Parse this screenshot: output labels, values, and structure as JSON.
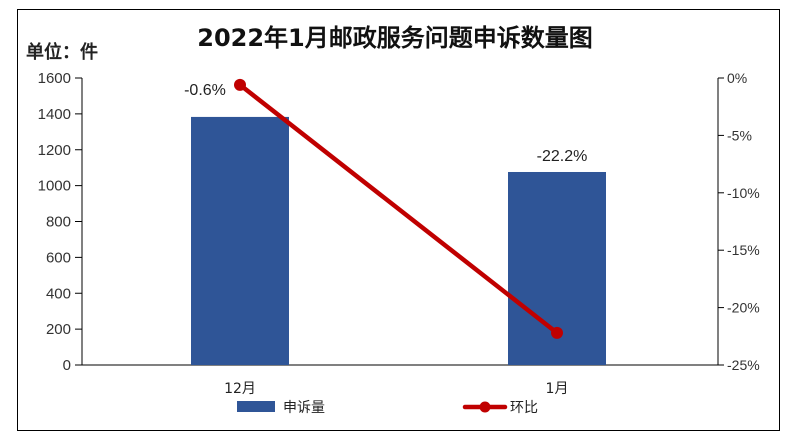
{
  "chart_data": {
    "type": "bar+line",
    "title": "2022年1月邮政服务问题申诉数量图",
    "unit_label": "单位：件",
    "categories": [
      "12月",
      "1月"
    ],
    "series": [
      {
        "name": "申诉量",
        "type": "bar",
        "axis": "left",
        "color": "#2F5597",
        "values": [
          1383,
          1076
        ]
      },
      {
        "name": "环比",
        "type": "line",
        "axis": "right",
        "color": "#C00000",
        "values": [
          -0.6,
          -22.2
        ],
        "labels": [
          "-0.6%",
          "-22.2%"
        ]
      }
    ],
    "left_axis": {
      "ylim": [
        0,
        1600
      ],
      "ticks": [
        "0",
        "200",
        "400",
        "600",
        "800",
        "1000",
        "1200",
        "1400",
        "1600"
      ]
    },
    "right_axis": {
      "ylim": [
        -25,
        0
      ],
      "ticks": [
        "0%",
        "-5%",
        "-10%",
        "-15%",
        "-20%",
        "-25%"
      ]
    },
    "grid": false,
    "legend_position": "bottom",
    "legend": [
      "申诉量",
      "环比"
    ]
  }
}
